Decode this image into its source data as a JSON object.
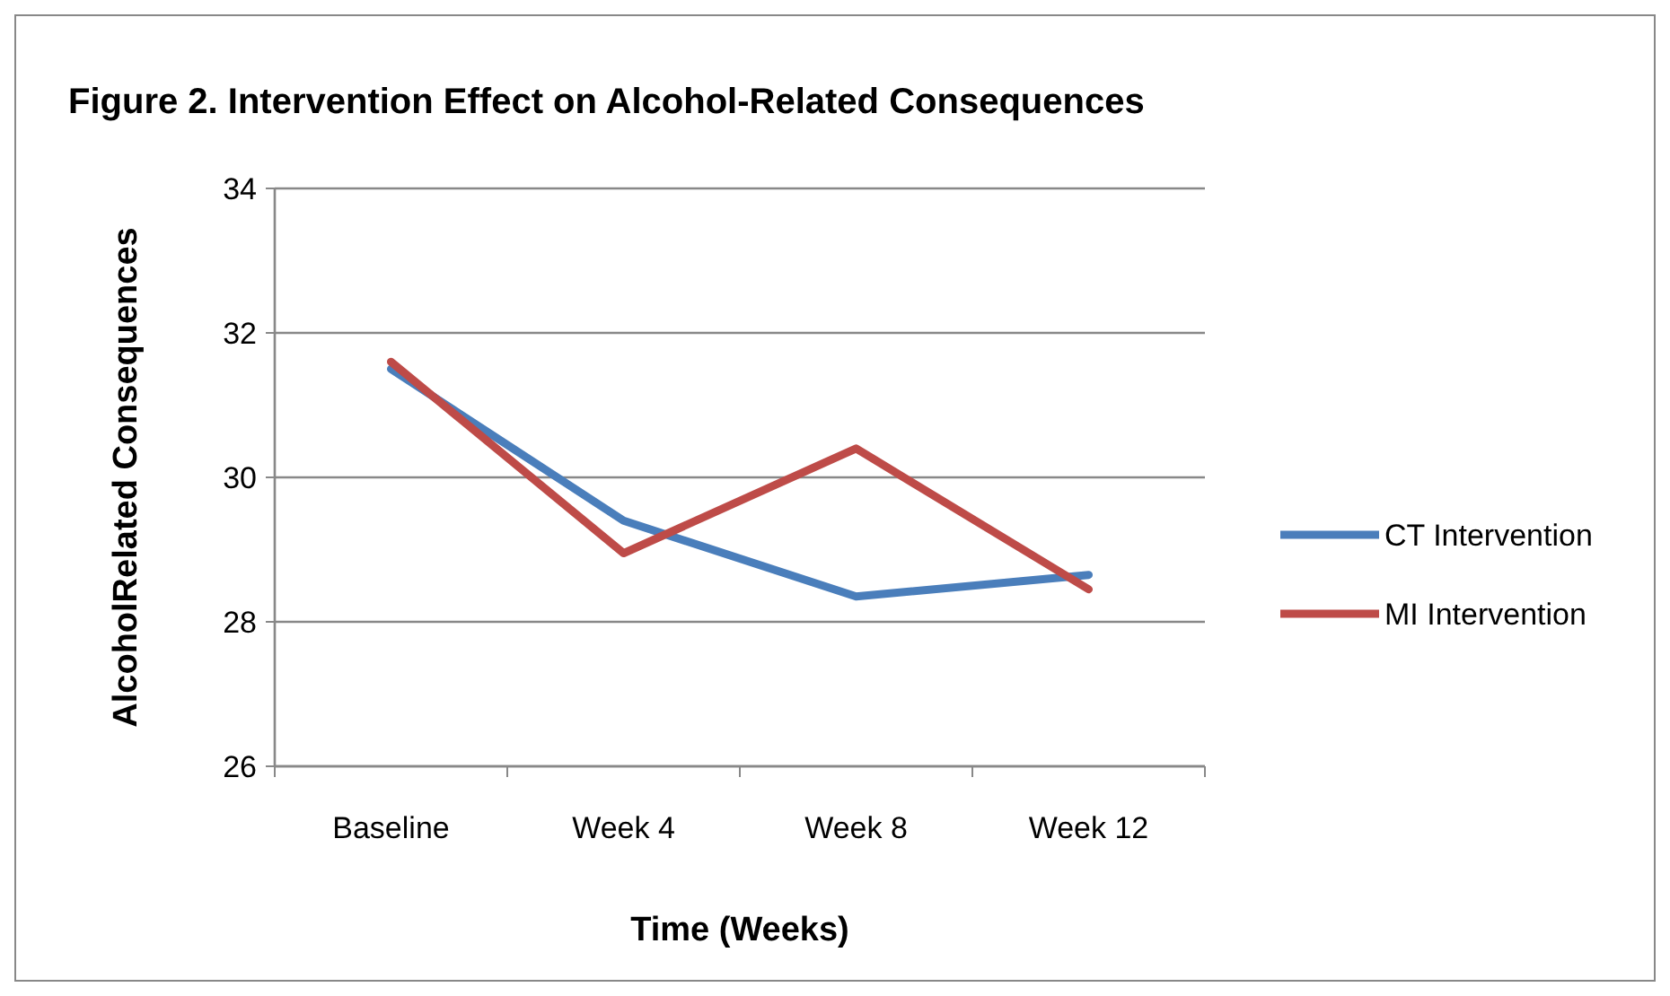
{
  "chart_data": {
    "type": "line",
    "title": "Figure 2. Intervention Effect on Alcohol-Related Consequences",
    "xlabel": "Time (Weeks)",
    "ylabel": "AlcoholRelated Consequences",
    "categories": [
      "Baseline",
      "Week 4",
      "Week 8",
      "Week 12"
    ],
    "series": [
      {
        "name": "CT Intervention",
        "color": "#4a7ebb",
        "values": [
          31.5,
          29.4,
          28.35,
          28.65
        ]
      },
      {
        "name": "MI Intervention",
        "color": "#be4b48",
        "values": [
          31.6,
          28.95,
          30.4,
          28.45
        ]
      }
    ],
    "ylim": [
      26,
      34
    ],
    "yticks": [
      26,
      28,
      30,
      32,
      34
    ],
    "grid": "y",
    "legend": "right",
    "marker": "none",
    "line_style": "solid"
  }
}
